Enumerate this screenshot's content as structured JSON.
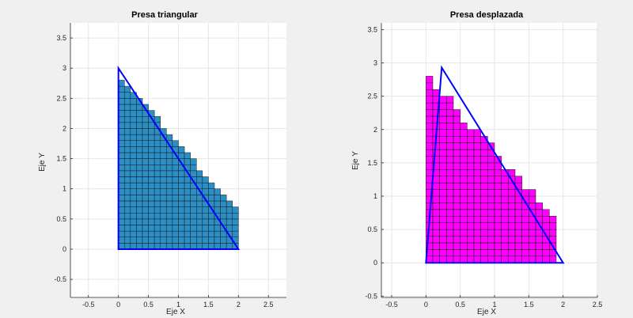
{
  "chart_data": [
    {
      "type": "grid-fill",
      "title": "Presa triangular",
      "xlabel": "Eje X",
      "ylabel": "Eje Y",
      "xlim": [
        -0.8,
        2.8
      ],
      "ylim": [
        -0.8,
        3.75
      ],
      "xticks": [
        -0.5,
        0,
        0.5,
        1,
        1.5,
        2,
        2.5
      ],
      "yticks": [
        -0.5,
        0,
        0.5,
        1,
        1.5,
        2,
        2.5,
        3,
        3.5
      ],
      "xtick_labels": [
        "-0.5",
        "0",
        "0.5",
        "1",
        "1.5",
        "2",
        "2.5"
      ],
      "ytick_labels": [
        "-0.5",
        "0",
        "0.5",
        "1",
        "1.5",
        "2",
        "2.5",
        "3",
        "3.5"
      ],
      "grid": true,
      "outline": {
        "points": [
          [
            0,
            0
          ],
          [
            0,
            3
          ],
          [
            2,
            0
          ]
        ],
        "color": "#0000ff"
      },
      "cells": {
        "size": 0.1,
        "color": "#2b8fc5",
        "edge_color": "#1a1a1a",
        "column_heights": [
          2.8,
          2.7,
          2.6,
          2.5,
          2.4,
          2.3,
          2.2,
          2.0,
          1.9,
          1.8,
          1.7,
          1.6,
          1.5,
          1.3,
          1.2,
          1.1,
          1.0,
          0.9,
          0.8,
          0.7
        ]
      }
    },
    {
      "type": "grid-fill",
      "title": "Presa desplazada",
      "xlabel": "Eje X",
      "ylabel": "Eje Y",
      "xlim": [
        -0.65,
        2.5
      ],
      "ylim": [
        -0.52,
        3.6
      ],
      "xticks": [
        -0.5,
        0,
        0.5,
        1,
        1.5,
        2,
        2.5
      ],
      "yticks": [
        -0.5,
        0,
        0.5,
        1,
        1.5,
        2,
        2.5,
        3,
        3.5
      ],
      "xtick_labels": [
        "-0.5",
        "0",
        "0.5",
        "1",
        "1.5",
        "2",
        "2.5"
      ],
      "ytick_labels": [
        "-0.5",
        "0",
        "0.5",
        "1",
        "1.5",
        "2",
        "2.5",
        "3",
        "3.5"
      ],
      "grid": true,
      "outline": {
        "points": [
          [
            0,
            0
          ],
          [
            0.23,
            2.93
          ],
          [
            2,
            0
          ]
        ],
        "color": "#0000ff"
      },
      "cells": {
        "size": 0.1,
        "color": "#ff00ff",
        "edge_color": "#1a1a1a",
        "column_heights": [
          2.75,
          2.65,
          2.55,
          2.45,
          2.25,
          2.15,
          2.05,
          1.95,
          1.85,
          1.75,
          1.55,
          1.45,
          1.35,
          1.25,
          1.15,
          1.05,
          0.85,
          0.75,
          0.65
        ]
      }
    }
  ]
}
